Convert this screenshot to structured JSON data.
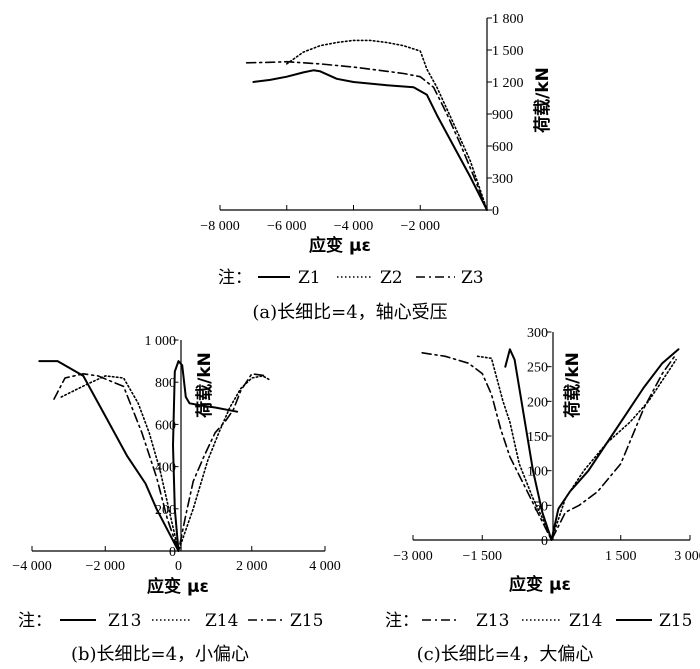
{
  "chart_data": [
    {
      "type": "line",
      "caption": "(a)长细比=4，轴心受压",
      "xlabel": "应变 με",
      "ylabel": "荷载/kN",
      "xlim": [
        -8000,
        0
      ],
      "ylim": [
        0,
        1800
      ],
      "xticks": [
        -8000,
        -6000,
        -4000,
        -2000
      ],
      "xtick_labels": [
        "−8 000",
        "−6 000",
        "−4 000",
        "−2 000"
      ],
      "yticks": [
        0,
        300,
        600,
        900,
        1200,
        1500,
        1800
      ],
      "ytick_labels": [
        "0",
        "300",
        "600",
        "900",
        "1 200",
        "1 500",
        "1 800"
      ],
      "legend_prefix": "注：",
      "series": [
        {
          "name": "Z1",
          "style": "solid",
          "x": [
            -7000,
            -6500,
            -6000,
            -5500,
            -5200,
            -5000,
            -4500,
            -4000,
            -3000,
            -2200,
            -1800,
            -1500,
            -1000,
            -500,
            0
          ],
          "y": [
            1200,
            1220,
            1250,
            1290,
            1310,
            1300,
            1230,
            1200,
            1170,
            1150,
            1080,
            890,
            600,
            310,
            0
          ]
        },
        {
          "name": "Z2",
          "style": "dotted",
          "x": [
            -6000,
            -5500,
            -5000,
            -4500,
            -4000,
            -3500,
            -3000,
            -2500,
            -2000,
            -1800,
            -1500,
            -1000,
            -500,
            0
          ],
          "y": [
            1370,
            1480,
            1540,
            1570,
            1590,
            1590,
            1570,
            1540,
            1490,
            1320,
            1150,
            810,
            460,
            0
          ]
        },
        {
          "name": "Z3",
          "style": "dashdot",
          "x": [
            -7200,
            -6500,
            -6000,
            -5000,
            -4000,
            -3000,
            -2500,
            -2000,
            -1600,
            -1200,
            -800,
            -400,
            0
          ],
          "y": [
            1380,
            1385,
            1390,
            1370,
            1340,
            1300,
            1280,
            1250,
            1150,
            900,
            620,
            320,
            0
          ]
        }
      ]
    },
    {
      "type": "line",
      "caption": "(b)长细比=4，小偏心",
      "xlabel": "应变 με",
      "ylabel": "荷载/kN",
      "xlim": [
        -4000,
        4000
      ],
      "ylim": [
        0,
        1000
      ],
      "xticks": [
        -4000,
        -2000,
        0,
        2000,
        4000
      ],
      "xtick_labels": [
        "−4 000",
        "−2 000",
        "0",
        "2 000",
        "4 000"
      ],
      "yticks": [
        0,
        200,
        400,
        600,
        800,
        1000
      ],
      "ytick_labels": [
        "0",
        "200",
        "400",
        "600",
        "800",
        "1 000"
      ],
      "legend_prefix": "注：",
      "series": [
        {
          "name": "Z13",
          "style": "solid",
          "x": [
            -3800,
            -3300,
            -2600,
            -2000,
            -1400,
            -900,
            -600,
            -300,
            0,
            -100,
            -150,
            -100,
            0,
            100,
            200,
            300,
            600,
            1000,
            1600
          ],
          "y": [
            900,
            900,
            830,
            640,
            450,
            320,
            200,
            100,
            0,
            200,
            500,
            850,
            900,
            880,
            730,
            700,
            690,
            680,
            660
          ]
        },
        {
          "name": "Z14",
          "style": "dotted",
          "x": [
            -3200,
            -2500,
            -2000,
            -1500,
            -1100,
            -800,
            -500,
            -200,
            0,
            400,
            800,
            1100,
            1400,
            1700,
            2000,
            2300,
            2500
          ],
          "y": [
            730,
            790,
            830,
            820,
            700,
            560,
            380,
            150,
            0,
            200,
            430,
            560,
            680,
            770,
            820,
            830,
            810
          ]
        },
        {
          "name": "Z15",
          "style": "dashdot",
          "x": [
            -3400,
            -3100,
            -2600,
            -2200,
            -1500,
            -1000,
            -600,
            -300,
            0,
            200,
            400,
            700,
            1000,
            1300,
            1500,
            1700,
            2000,
            2400
          ],
          "y": [
            720,
            820,
            840,
            830,
            780,
            560,
            350,
            150,
            0,
            170,
            330,
            450,
            560,
            620,
            670,
            760,
            840,
            830
          ]
        }
      ]
    },
    {
      "type": "line",
      "caption": "(c)长细比=4，大偏心",
      "xlabel": "应变 με",
      "ylabel": "荷载/kN",
      "xlim": [
        -3000,
        3000
      ],
      "ylim": [
        0,
        300
      ],
      "xticks": [
        -3000,
        -1500,
        1500,
        3000
      ],
      "xtick_labels": [
        "−3 000",
        "−1 500",
        "1 500",
        "3 000"
      ],
      "yticks": [
        0,
        50,
        100,
        150,
        200,
        250,
        300
      ],
      "ytick_labels": [
        "0",
        "50",
        "100",
        "150",
        "200",
        "250",
        "300"
      ],
      "legend_prefix": "注：",
      "series": [
        {
          "name": "Z13",
          "style": "dashdot",
          "x": [
            -2800,
            -2300,
            -1800,
            -1500,
            -1300,
            -1100,
            -900,
            -600,
            -300,
            0,
            300,
            600,
            1000,
            1500,
            2000,
            2400,
            2700
          ],
          "y": [
            270,
            265,
            255,
            240,
            210,
            160,
            120,
            80,
            40,
            0,
            40,
            50,
            70,
            110,
            190,
            240,
            268
          ]
        },
        {
          "name": "Z14",
          "style": "dotted",
          "x": [
            -1600,
            -1300,
            -1050,
            -900,
            -700,
            -400,
            -150,
            0,
            300,
            700,
            1200,
            1700,
            2100,
            2500,
            2700
          ],
          "y": [
            265,
            262,
            200,
            170,
            110,
            60,
            25,
            0,
            60,
            100,
            140,
            170,
            200,
            240,
            260
          ]
        },
        {
          "name": "Z15",
          "style": "solid",
          "x": [
            -1000,
            -900,
            -800,
            -600,
            -400,
            -200,
            -100,
            0,
            150,
            400,
            800,
            1200,
            1600,
            2000,
            2400,
            2750
          ],
          "y": [
            250,
            275,
            260,
            180,
            100,
            40,
            20,
            0,
            45,
            70,
            100,
            140,
            180,
            220,
            255,
            275
          ]
        }
      ]
    }
  ]
}
